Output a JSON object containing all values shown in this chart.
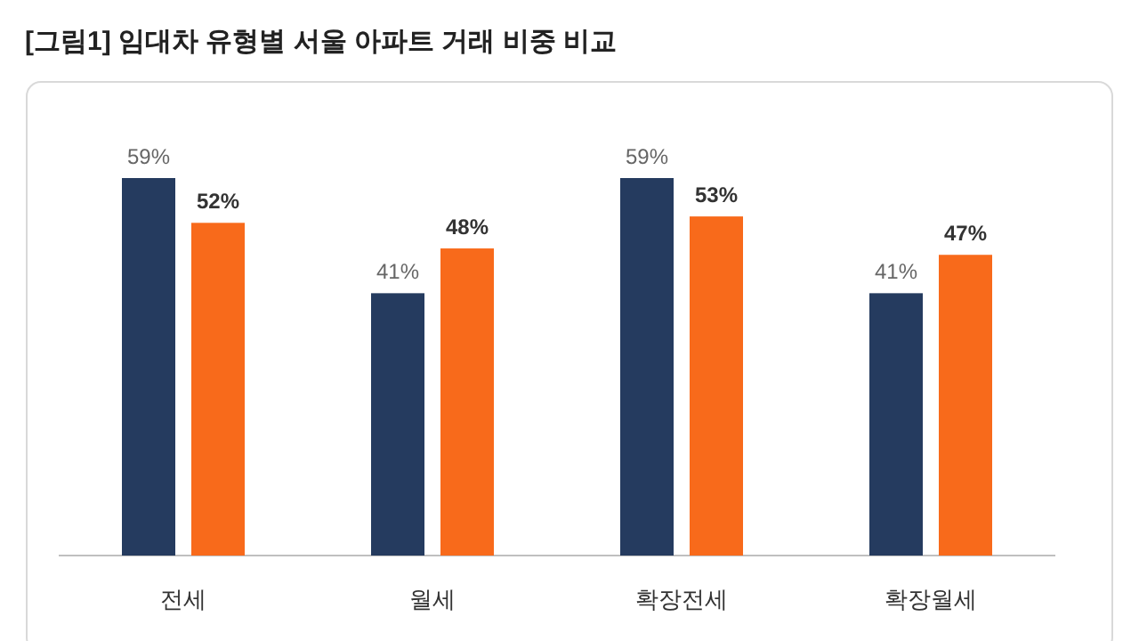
{
  "chart_data": {
    "type": "bar",
    "title": "[그림1] 임대차 유형별 서울 아파트 거래 비중 비교",
    "categories": [
      "전세",
      "월세",
      "확장전세",
      "확장월세"
    ],
    "series": [
      {
        "color": "#253b5f",
        "values": [
          59,
          41,
          59,
          41
        ],
        "value_labels": [
          "59%",
          "41%",
          "59%",
          "41%"
        ]
      },
      {
        "color": "#f86a1b",
        "values": [
          52,
          48,
          53,
          47
        ],
        "value_labels": [
          "52%",
          "48%",
          "53%",
          "47%"
        ]
      }
    ]
  }
}
